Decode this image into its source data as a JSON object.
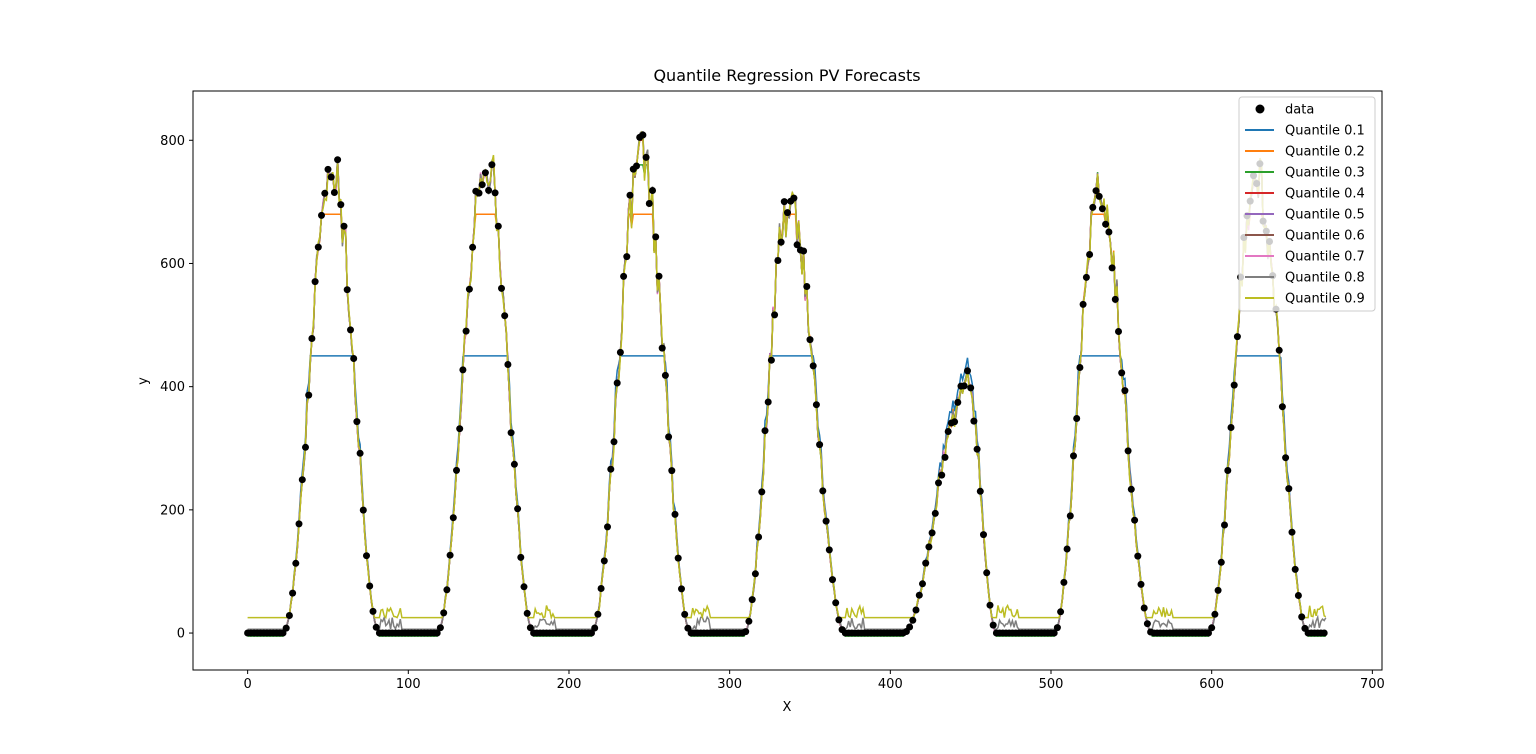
{
  "chart_data": {
    "type": "line",
    "title": "Quantile Regression PV Forecasts",
    "xlabel": "X",
    "ylabel": "y",
    "xlim": [
      -34,
      706
    ],
    "ylim": [
      -60,
      880
    ],
    "xticks": [
      0,
      100,
      200,
      300,
      400,
      500,
      600,
      700
    ],
    "yticks": [
      0,
      200,
      400,
      600,
      800
    ],
    "grid": false,
    "legend_position": "top-right",
    "scatter": {
      "name": "data",
      "color": "#000000",
      "days": [
        {
          "start": 0,
          "rise": 22,
          "peak_x": 53,
          "peak": 800,
          "set": 82
        },
        {
          "start": 96,
          "rise": 118,
          "peak_x": 148,
          "peak": 825,
          "set": 178
        },
        {
          "start": 192,
          "rise": 214,
          "peak_x": 245,
          "peak": 820,
          "set": 276
        },
        {
          "start": 288,
          "rise": 309,
          "peak_x": 337,
          "peak": 745,
          "set": 372
        },
        {
          "start": 384,
          "rise": 408,
          "peak_x": 448,
          "peak": 430,
          "set": 466
        },
        {
          "start": 480,
          "rise": 502,
          "peak_x": 530,
          "peak": 760,
          "set": 563
        },
        {
          "start": 576,
          "rise": 598,
          "peak_x": 628,
          "peak": 780,
          "set": 660
        }
      ]
    },
    "series": [
      {
        "name": "Quantile 0.1",
        "quantile": 0.1,
        "color": "#1f77b4",
        "cap": 450,
        "night": 0
      },
      {
        "name": "Quantile 0.2",
        "quantile": 0.2,
        "color": "#ff7f0e",
        "cap": 680,
        "night": 0
      },
      {
        "name": "Quantile 0.3",
        "quantile": 0.3,
        "color": "#2ca02c",
        "cap": 760,
        "night": -5
      },
      {
        "name": "Quantile 0.4",
        "quantile": 0.4,
        "color": "#d62728",
        "cap": 800,
        "night": 0
      },
      {
        "name": "Quantile 0.5",
        "quantile": 0.5,
        "color": "#9467bd",
        "cap": 820,
        "night": 2
      },
      {
        "name": "Quantile 0.6",
        "quantile": 0.6,
        "color": "#8c564b",
        "cap": 825,
        "night": 3
      },
      {
        "name": "Quantile 0.7",
        "quantile": 0.7,
        "color": "#e377c2",
        "cap": 830,
        "night": 0
      },
      {
        "name": "Quantile 0.8",
        "quantile": 0.8,
        "color": "#7f7f7f",
        "cap": 830,
        "night": 6
      },
      {
        "name": "Quantile 0.9",
        "quantile": 0.9,
        "color": "#bcbd22",
        "cap": 835,
        "night": 25
      }
    ]
  }
}
